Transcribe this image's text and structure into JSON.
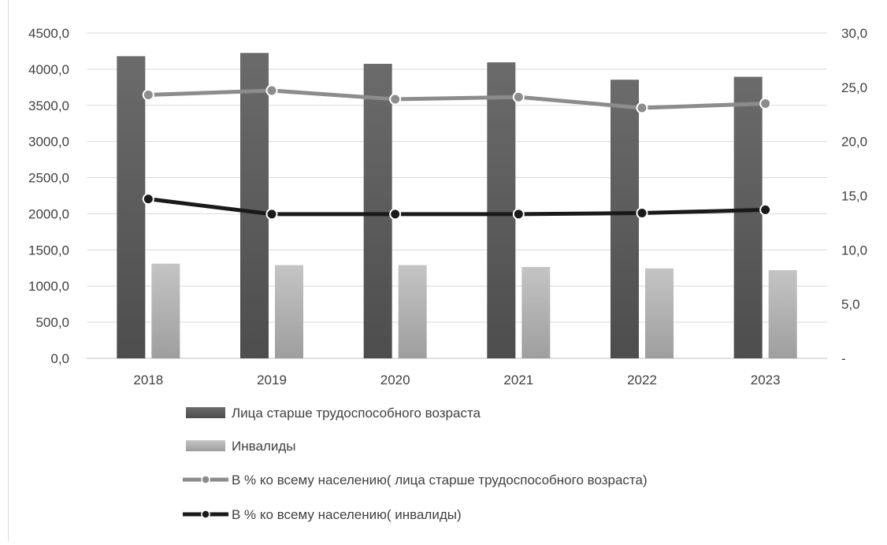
{
  "chart_data": {
    "type": "bar",
    "title": "",
    "categories": [
      "2018",
      "2019",
      "2020",
      "2021",
      "2022",
      "2023"
    ],
    "y_left": {
      "min": 0,
      "max": 4500,
      "step": 500,
      "tick_labels": [
        "0,0",
        "500,0",
        "1000,0",
        "1500,0",
        "2000,0",
        "2500,0",
        "3000,0",
        "3500,0",
        "4000,0",
        "4500,0"
      ]
    },
    "y_right": {
      "min": 0,
      "max": 30,
      "step": 5,
      "tick_labels": [
        "-",
        "5,0",
        "10,0",
        "15,0",
        "20,0",
        "25,0",
        "30,0"
      ]
    },
    "grid": true,
    "legend_position": "bottom",
    "series": [
      {
        "name": "Лица старше трудоспособного возраста",
        "type": "bar",
        "axis": "left",
        "color": "#595959",
        "values": [
          4180,
          4225,
          4075,
          4095,
          3855,
          3895
        ]
      },
      {
        "name": "Инвалиды",
        "type": "bar",
        "axis": "left",
        "color": "#b3b3b3",
        "values": [
          1310,
          1290,
          1290,
          1265,
          1245,
          1220
        ]
      },
      {
        "name": "В % ко всему населению( лица старше трудоспособного возраста)",
        "type": "line",
        "axis": "right",
        "color": "#8c8c8c",
        "values": [
          24.3,
          24.7,
          23.9,
          24.1,
          23.1,
          23.5
        ]
      },
      {
        "name": "В % ко всему населению( инвалиды)",
        "type": "line",
        "axis": "right",
        "color": "#1a1a1a",
        "values": [
          14.7,
          13.3,
          13.3,
          13.3,
          13.4,
          13.7
        ]
      }
    ]
  }
}
